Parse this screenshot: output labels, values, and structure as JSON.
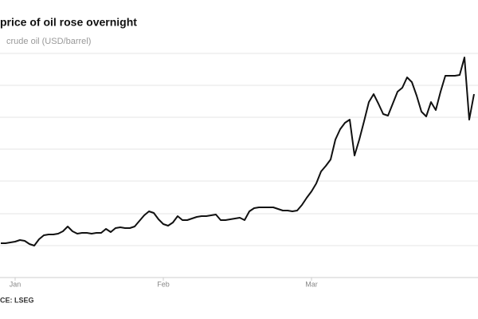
{
  "chart_data": {
    "type": "line",
    "title": "price of oil rose overnight",
    "subtitle": "crude oil (USD/barrel)",
    "source": "CE: LSEG",
    "categories": [
      null,
      null,
      null,
      "Jan",
      null,
      null,
      null,
      null,
      null,
      null,
      null,
      null,
      null,
      null,
      null,
      null,
      null,
      null,
      null,
      null,
      null,
      null,
      null,
      null,
      null,
      null,
      null,
      null,
      null,
      null,
      null,
      null,
      null,
      null,
      "Feb",
      null,
      null,
      null,
      null,
      null,
      null,
      null,
      null,
      null,
      null,
      null,
      null,
      null,
      null,
      null,
      null,
      null,
      null,
      null,
      null,
      null,
      null,
      null,
      null,
      null,
      null,
      null,
      null,
      null,
      null,
      "Mar",
      null,
      null,
      null,
      null,
      null,
      null,
      null,
      null,
      null,
      null,
      null,
      null,
      null,
      null,
      null,
      null,
      null,
      null,
      null,
      null,
      null,
      null,
      null,
      null,
      null,
      null,
      null,
      null,
      null,
      null,
      null,
      null,
      null,
      null
    ],
    "series": [
      {
        "name": "crude oil",
        "color": "#111111",
        "values": [
          43,
          43,
          44,
          45,
          47,
          46,
          42,
          40,
          48,
          53,
          54,
          54,
          55,
          58,
          64,
          58,
          55,
          56,
          56,
          55,
          56,
          56,
          61,
          57,
          62,
          63,
          62,
          62,
          64,
          71,
          78,
          83,
          81,
          73,
          67,
          65,
          69,
          77,
          72,
          72,
          74,
          76,
          77,
          77,
          78,
          79,
          72,
          72,
          73,
          74,
          75,
          72,
          83,
          87,
          88,
          88,
          88,
          88,
          86,
          84,
          84,
          83,
          84,
          91,
          100,
          108,
          118,
          133,
          140,
          148,
          173,
          186,
          194,
          198,
          153,
          173,
          196,
          220,
          230,
          218,
          205,
          203,
          218,
          233,
          238,
          251,
          245,
          228,
          208,
          202,
          220,
          210,
          233,
          253,
          253,
          253,
          254,
          276,
          198,
          230
        ]
      }
    ],
    "ylim": [
      0,
      280
    ]
  }
}
